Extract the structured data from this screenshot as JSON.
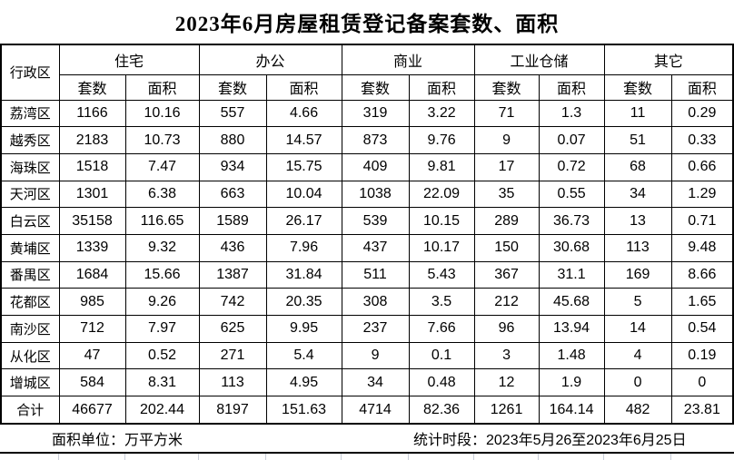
{
  "title": "2023年6月房屋租赁登记备案套数、面积",
  "table": {
    "corner_header": "行政区",
    "groups": [
      {
        "label": "住宅",
        "flag": true
      },
      {
        "label": "办公",
        "flag": true
      },
      {
        "label": "商业",
        "flag": false
      },
      {
        "label": "工业仓储",
        "flag": true
      },
      {
        "label": "其它",
        "flag": true
      }
    ],
    "sub_headers": [
      "套数",
      "面积"
    ],
    "rows": [
      {
        "district": "荔湾区",
        "values": [
          "1166",
          "10.16",
          "557",
          "4.66",
          "319",
          "3.22",
          "71",
          "1.3",
          "11",
          "0.29"
        ]
      },
      {
        "district": "越秀区",
        "values": [
          "2183",
          "10.73",
          "880",
          "14.57",
          "873",
          "9.76",
          "9",
          "0.07",
          "51",
          "0.33"
        ]
      },
      {
        "district": "海珠区",
        "values": [
          "1518",
          "7.47",
          "934",
          "15.75",
          "409",
          "9.81",
          "17",
          "0.72",
          "68",
          "0.66"
        ]
      },
      {
        "district": "天河区",
        "values": [
          "1301",
          "6.38",
          "663",
          "10.04",
          "1038",
          "22.09",
          "35",
          "0.55",
          "34",
          "1.29"
        ]
      },
      {
        "district": "白云区",
        "values": [
          "35158",
          "116.65",
          "1589",
          "26.17",
          "539",
          "10.15",
          "289",
          "36.73",
          "13",
          "0.71"
        ]
      },
      {
        "district": "黄埔区",
        "values": [
          "1339",
          "9.32",
          "436",
          "7.96",
          "437",
          "10.17",
          "150",
          "30.68",
          "113",
          "9.48"
        ]
      },
      {
        "district": "番禺区",
        "values": [
          "1684",
          "15.66",
          "1387",
          "31.84",
          "511",
          "5.43",
          "367",
          "31.1",
          "169",
          "8.66"
        ]
      },
      {
        "district": "花都区",
        "values": [
          "985",
          "9.26",
          "742",
          "20.35",
          "308",
          "3.5",
          "212",
          "45.68",
          "5",
          "1.65"
        ]
      },
      {
        "district": "南沙区",
        "values": [
          "712",
          "7.97",
          "625",
          "9.95",
          "237",
          "7.66",
          "96",
          "13.94",
          "14",
          "0.54"
        ]
      },
      {
        "district": "从化区",
        "values": [
          "47",
          "0.52",
          "271",
          "5.4",
          "9",
          "0.1",
          "3",
          "1.48",
          "4",
          "0.19"
        ]
      },
      {
        "district": "增城区",
        "values": [
          "584",
          "8.31",
          "113",
          "4.95",
          "34",
          "0.48",
          "12",
          "1.9",
          "0",
          "0"
        ]
      },
      {
        "district": "合计",
        "values": [
          "46677",
          "202.44",
          "8197",
          "151.63",
          "4714",
          "82.36",
          "1261",
          "164.14",
          "482",
          "23.81"
        ]
      }
    ]
  },
  "footer": {
    "unit_label": "面积单位：万平方米",
    "period_label": "统计时段：2023年5月26至2023年6月25日"
  },
  "colors": {
    "flag_green": "#00A000",
    "border": "#000000",
    "faint_grid": "#c9ced8"
  }
}
